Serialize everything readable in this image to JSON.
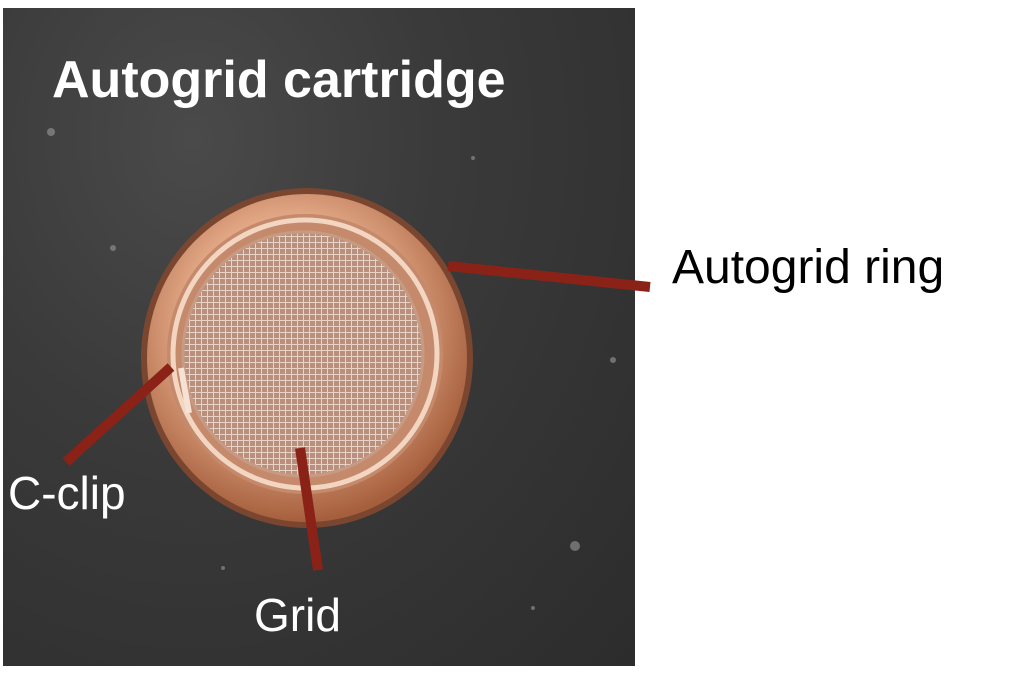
{
  "figure": {
    "title": "Autogrid cartridge",
    "labels": {
      "autogrid_ring": "Autogrid ring",
      "c_clip": "C-clip",
      "grid": "Grid"
    }
  },
  "colors": {
    "background_slate": "#333333",
    "pointer": "#8a2218",
    "ring_copper": "#e8b08e",
    "label_on_dark": "#ffffff",
    "label_on_light": "#000000"
  }
}
